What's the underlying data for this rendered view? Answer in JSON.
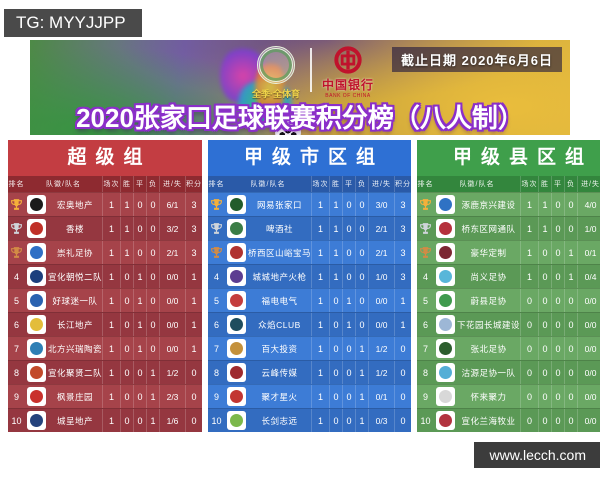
{
  "watermark_tg": "TG: MYYJJPP",
  "banner": {
    "deadline_label": "截止日期 2020年6月6日",
    "sponsor_left": "全季·全体育",
    "sponsor_right_cn": "中国银行",
    "sponsor_right_en": "BANK OF CHINA",
    "title": "2020张家口足球联赛积分榜（八人制）"
  },
  "columns": [
    "排名",
    "队徽/队名",
    "场次",
    "胜",
    "平",
    "负",
    "进/失",
    "积分"
  ],
  "trophy_colors": {
    "gold": "#f5b03a",
    "silver": "#cfd4da",
    "bronze": "#d28b45"
  },
  "tables": [
    {
      "name": "超级组",
      "slug": "super-group",
      "theme": {
        "band": "#c33d42",
        "col_header": "#8e2a30",
        "row_a": "#a6434a",
        "row_b": "#953740"
      },
      "rows": [
        {
          "rank": 1,
          "trophy": "gold",
          "badge": "#1a1a1a",
          "team": "宏奥地产",
          "played": 1,
          "win": 1,
          "draw": 0,
          "loss": 0,
          "goals": "6/1",
          "points": 3
        },
        {
          "rank": 2,
          "trophy": "silver",
          "badge": "#c03028",
          "team": "香楼",
          "played": 1,
          "win": 1,
          "draw": 0,
          "loss": 0,
          "goals": "3/2",
          "points": 3
        },
        {
          "rank": 3,
          "trophy": "bronze",
          "badge": "#2f6fc5",
          "team": "崇礼足协",
          "played": 1,
          "win": 1,
          "draw": 0,
          "loss": 0,
          "goals": "2/1",
          "points": 3
        },
        {
          "rank": 4,
          "trophy": null,
          "badge": "#1c3f7d",
          "team": "宣化朝悦二队",
          "played": 1,
          "win": 0,
          "draw": 1,
          "loss": 0,
          "goals": "0/0",
          "points": 1
        },
        {
          "rank": 5,
          "trophy": null,
          "badge": "#2a62b0",
          "team": "好球迷一队",
          "played": 1,
          "win": 0,
          "draw": 1,
          "loss": 0,
          "goals": "0/0",
          "points": 1
        },
        {
          "rank": 6,
          "trophy": null,
          "badge": "#e3bd3a",
          "team": "长江地产",
          "played": 1,
          "win": 0,
          "draw": 1,
          "loss": 0,
          "goals": "0/0",
          "points": 1
        },
        {
          "rank": 7,
          "trophy": null,
          "badge": "#2e7fb5",
          "team": "北方兴瑞陶瓷",
          "played": 1,
          "win": 0,
          "draw": 1,
          "loss": 0,
          "goals": "0/0",
          "points": 1
        },
        {
          "rank": 8,
          "trophy": null,
          "badge": "#c24a2a",
          "team": "宣化聚贤二队",
          "played": 1,
          "win": 0,
          "draw": 0,
          "loss": 1,
          "goals": "1/2",
          "points": 0
        },
        {
          "rank": 9,
          "trophy": null,
          "badge": "#c9302c",
          "team": "枫景庄园",
          "played": 1,
          "win": 0,
          "draw": 0,
          "loss": 1,
          "goals": "2/3",
          "points": 0
        },
        {
          "rank": 10,
          "trophy": null,
          "badge": "#24437d",
          "team": "城呈地产",
          "played": 1,
          "win": 0,
          "draw": 0,
          "loss": 1,
          "goals": "1/6",
          "points": 0
        }
      ]
    },
    {
      "name": "甲级市区组",
      "slug": "city-group",
      "theme": {
        "band": "#2e70d4",
        "col_header": "#2a5aa8",
        "row_a": "#3d7cd6",
        "row_b": "#336cc0"
      },
      "rows": [
        {
          "rank": 1,
          "trophy": "gold",
          "badge": "#225c2b",
          "team": "网易张家口",
          "played": 1,
          "win": 1,
          "draw": 0,
          "loss": 0,
          "goals": "3/0",
          "points": 3
        },
        {
          "rank": 2,
          "trophy": "silver",
          "badge": "#3b7d46",
          "team": "啤酒社",
          "played": 1,
          "win": 1,
          "draw": 0,
          "loss": 0,
          "goals": "2/1",
          "points": 3
        },
        {
          "rank": 3,
          "trophy": "bronze",
          "badge": "#b03331",
          "team": "桥西区山峪宝马",
          "played": 1,
          "win": 1,
          "draw": 0,
          "loss": 0,
          "goals": "2/1",
          "points": 3
        },
        {
          "rank": 4,
          "trophy": null,
          "badge": "#5c3d91",
          "team": "城城地产火枪",
          "played": 1,
          "win": 1,
          "draw": 0,
          "loss": 0,
          "goals": "1/0",
          "points": 3
        },
        {
          "rank": 5,
          "trophy": null,
          "badge": "#c43d3d",
          "team": "福电电气",
          "played": 1,
          "win": 0,
          "draw": 1,
          "loss": 0,
          "goals": "0/0",
          "points": 1
        },
        {
          "rank": 6,
          "trophy": null,
          "badge": "#1f4d5e",
          "team": "众焰CLUB",
          "played": 1,
          "win": 0,
          "draw": 1,
          "loss": 0,
          "goals": "0/0",
          "points": 1
        },
        {
          "rank": 7,
          "trophy": null,
          "badge": "#c4913b",
          "team": "百大投资",
          "played": 1,
          "win": 0,
          "draw": 0,
          "loss": 1,
          "goals": "1/2",
          "points": 0
        },
        {
          "rank": 8,
          "trophy": null,
          "badge": "#9e2a2e",
          "team": "云峰传媒",
          "played": 1,
          "win": 0,
          "draw": 0,
          "loss": 1,
          "goals": "1/2",
          "points": 0
        },
        {
          "rank": 9,
          "trophy": null,
          "badge": "#c23532",
          "team": "聚才星火",
          "played": 1,
          "win": 0,
          "draw": 0,
          "loss": 1,
          "goals": "0/1",
          "points": 0
        },
        {
          "rank": 10,
          "trophy": null,
          "badge": "#7cb84a",
          "team": "长剑志远",
          "played": 1,
          "win": 0,
          "draw": 0,
          "loss": 1,
          "goals": "0/3",
          "points": 0
        }
      ]
    },
    {
      "name": "甲级县区组",
      "slug": "county-group",
      "theme": {
        "band": "#3f9f4b",
        "col_header": "#33863d",
        "row_a": "#6aa864",
        "row_b": "#5b9956"
      },
      "rows": [
        {
          "rank": 1,
          "trophy": "gold",
          "badge": "#2f72c4",
          "team": "涿鹿京兴建设",
          "played": 1,
          "win": 1,
          "draw": 0,
          "loss": 0,
          "goals": "4/0",
          "points": 3
        },
        {
          "rank": 2,
          "trophy": "silver",
          "badge": "#b5313c",
          "team": "桥东区网通队",
          "played": 1,
          "win": 1,
          "draw": 0,
          "loss": 0,
          "goals": "1/0",
          "points": 3
        },
        {
          "rank": 3,
          "trophy": "bronze",
          "badge": "#7c2733",
          "team": "豪华定制",
          "played": 1,
          "win": 0,
          "draw": 0,
          "loss": 1,
          "goals": "0/1",
          "points": 0
        },
        {
          "rank": 4,
          "trophy": null,
          "badge": "#58b6d9",
          "team": "尚义足协",
          "played": 1,
          "win": 0,
          "draw": 0,
          "loss": 1,
          "goals": "0/4",
          "points": 0
        },
        {
          "rank": 5,
          "trophy": null,
          "badge": "#3f9a4d",
          "team": "蔚县足协",
          "played": 0,
          "win": 0,
          "draw": 0,
          "loss": 0,
          "goals": "0/0",
          "points": 0
        },
        {
          "rank": 6,
          "trophy": null,
          "badge": "#9db7d6",
          "team": "下花园长城建设",
          "played": 0,
          "win": 0,
          "draw": 0,
          "loss": 0,
          "goals": "0/0",
          "points": 0
        },
        {
          "rank": 7,
          "trophy": null,
          "badge": "#2c5e2e",
          "team": "张北足协",
          "played": 0,
          "win": 0,
          "draw": 0,
          "loss": 0,
          "goals": "0/0",
          "points": 0
        },
        {
          "rank": 8,
          "trophy": null,
          "badge": "#54aed6",
          "team": "沽源足协一队",
          "played": 0,
          "win": 0,
          "draw": 0,
          "loss": 0,
          "goals": "0/0",
          "points": 0
        },
        {
          "rank": 9,
          "trophy": null,
          "badge": "#d8d8d8",
          "team": "怀来聚力",
          "played": 0,
          "win": 0,
          "draw": 0,
          "loss": 0,
          "goals": "0/0",
          "points": 0
        },
        {
          "rank": 10,
          "trophy": null,
          "badge": "#b2333f",
          "team": "宣化兰海牧业",
          "played": 0,
          "win": 0,
          "draw": 0,
          "loss": 0,
          "goals": "0/0",
          "points": 0
        }
      ]
    }
  ],
  "footer_url": "www.lecch.com"
}
